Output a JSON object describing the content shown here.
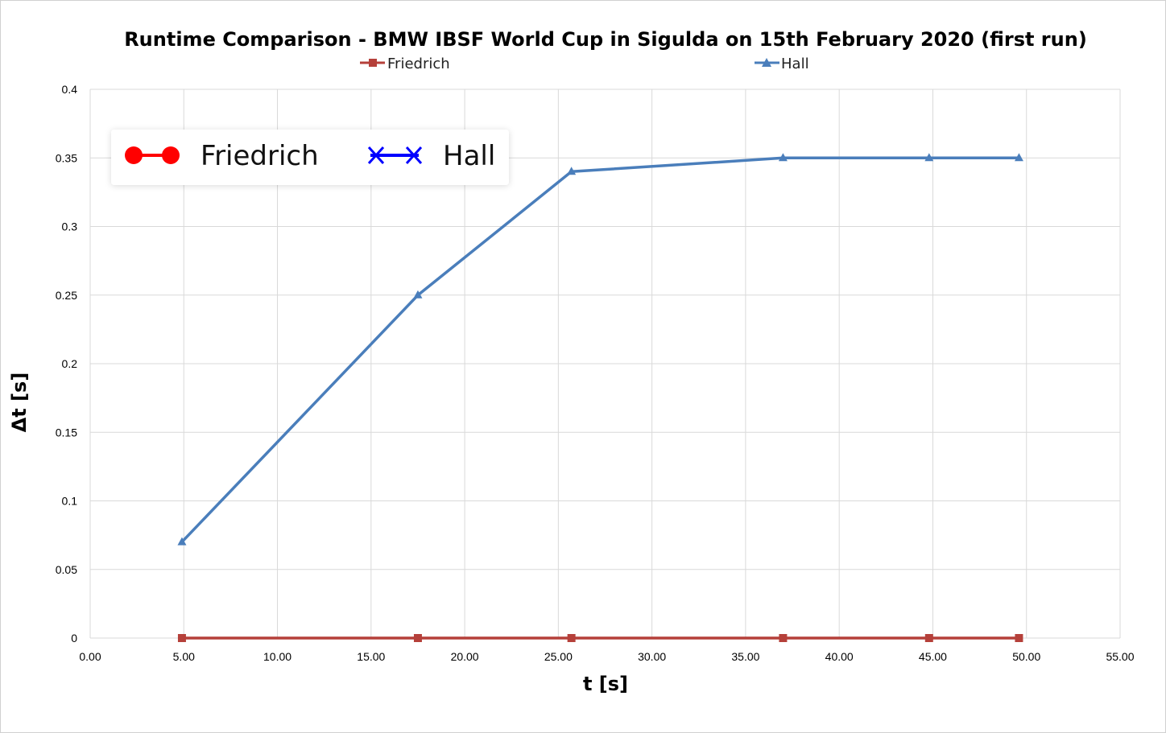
{
  "chart_data": {
    "type": "line",
    "title": "Runtime Comparison - BMW IBSF World Cup in Sigulda on 15th February 2020 (first run)",
    "xlabel": "t [s]",
    "ylabel": "Δt [s]",
    "xlim": [
      0,
      55
    ],
    "ylim": [
      0,
      0.4
    ],
    "x_ticks": [
      "0.00",
      "5.00",
      "10.00",
      "15.00",
      "20.00",
      "25.00",
      "30.00",
      "35.00",
      "40.00",
      "45.00",
      "50.00",
      "55.00"
    ],
    "y_ticks": [
      "0",
      "0.05",
      "0.1",
      "0.15",
      "0.2",
      "0.25",
      "0.3",
      "0.35",
      "0.4"
    ],
    "grid": true,
    "series": [
      {
        "name": "Friedrich",
        "color": "#b5403a",
        "marker": "square",
        "x": [
          4.9,
          17.5,
          25.7,
          37.0,
          44.8,
          49.6
        ],
        "values": [
          0,
          0,
          0,
          0,
          0,
          0
        ]
      },
      {
        "name": "Hall",
        "color": "#4a7ebb",
        "marker": "triangle",
        "x": [
          4.9,
          17.5,
          25.7,
          37.0,
          44.8,
          49.6
        ],
        "values": [
          0.07,
          0.25,
          0.34,
          0.35,
          0.35,
          0.35
        ]
      }
    ],
    "legend_top": {
      "placement": "top",
      "items": [
        {
          "name": "Friedrich",
          "color": "#b5403a",
          "marker": "square"
        },
        {
          "name": "Hall",
          "color": "#4a7ebb",
          "marker": "triangle"
        }
      ]
    },
    "legend_overlay": {
      "placement": "top-left",
      "items": [
        {
          "name": "Friedrich",
          "color": "#ff0000",
          "marker": "circle"
        },
        {
          "name": "Hall",
          "color": "#0000ff",
          "marker": "x"
        }
      ]
    }
  }
}
